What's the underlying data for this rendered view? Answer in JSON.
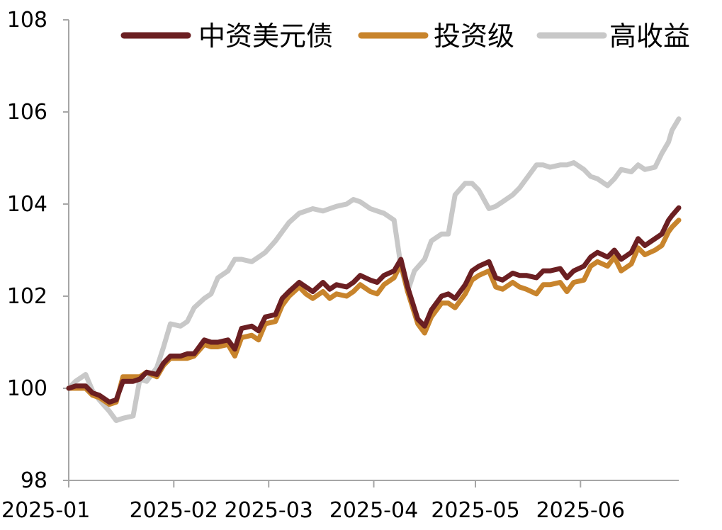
{
  "chart_data": {
    "type": "line",
    "title": "",
    "xlabel": "",
    "ylabel": "",
    "ylim": [
      98,
      108
    ],
    "yticks": [
      "98",
      "100",
      "102",
      "104",
      "106",
      "108"
    ],
    "xlim": [
      "2025-01-01",
      "2025-06-30"
    ],
    "xticks": [
      {
        "label": "2025-01",
        "date": "2025-01-01"
      },
      {
        "label": "2025-02",
        "date": "2025-02-01"
      },
      {
        "label": "2025-03",
        "date": "2025-03-01"
      },
      {
        "label": "2025-04",
        "date": "2025-04-01"
      },
      {
        "label": "2025-05",
        "date": "2025-05-01"
      },
      {
        "label": "2025-06",
        "date": "2025-06-01"
      }
    ],
    "grid": false,
    "legend_position": "top",
    "series": [
      {
        "name": "中资美元债",
        "color": "#6b1f22",
        "points": [
          [
            "2025-01-01",
            100.0
          ],
          [
            "2025-01-03",
            100.05
          ],
          [
            "2025-01-06",
            100.05
          ],
          [
            "2025-01-08",
            99.9
          ],
          [
            "2025-01-10",
            99.85
          ],
          [
            "2025-01-13",
            99.7
          ],
          [
            "2025-01-15",
            99.75
          ],
          [
            "2025-01-17",
            100.15
          ],
          [
            "2025-01-20",
            100.15
          ],
          [
            "2025-01-22",
            100.2
          ],
          [
            "2025-01-24",
            100.35
          ],
          [
            "2025-01-27",
            100.3
          ],
          [
            "2025-01-29",
            100.55
          ],
          [
            "2025-01-31",
            100.7
          ],
          [
            "2025-02-03",
            100.7
          ],
          [
            "2025-02-05",
            100.75
          ],
          [
            "2025-02-07",
            100.75
          ],
          [
            "2025-02-10",
            101.05
          ],
          [
            "2025-02-12",
            101.0
          ],
          [
            "2025-02-14",
            101.0
          ],
          [
            "2025-02-17",
            101.05
          ],
          [
            "2025-02-19",
            100.85
          ],
          [
            "2025-02-21",
            101.3
          ],
          [
            "2025-02-24",
            101.35
          ],
          [
            "2025-02-26",
            101.25
          ],
          [
            "2025-02-28",
            101.55
          ],
          [
            "2025-03-03",
            101.6
          ],
          [
            "2025-03-05",
            101.95
          ],
          [
            "2025-03-07",
            102.1
          ],
          [
            "2025-03-10",
            102.3
          ],
          [
            "2025-03-12",
            102.2
          ],
          [
            "2025-03-14",
            102.1
          ],
          [
            "2025-03-17",
            102.3
          ],
          [
            "2025-03-19",
            102.15
          ],
          [
            "2025-03-21",
            102.25
          ],
          [
            "2025-03-24",
            102.2
          ],
          [
            "2025-03-26",
            102.3
          ],
          [
            "2025-03-28",
            102.45
          ],
          [
            "2025-03-31",
            102.35
          ],
          [
            "2025-04-02",
            102.3
          ],
          [
            "2025-04-04",
            102.45
          ],
          [
            "2025-04-07",
            102.55
          ],
          [
            "2025-04-09",
            102.8
          ],
          [
            "2025-04-11",
            102.2
          ],
          [
            "2025-04-14",
            101.5
          ],
          [
            "2025-04-16",
            101.35
          ],
          [
            "2025-04-18",
            101.7
          ],
          [
            "2025-04-21",
            102.0
          ],
          [
            "2025-04-23",
            102.05
          ],
          [
            "2025-04-25",
            101.95
          ],
          [
            "2025-04-28",
            102.25
          ],
          [
            "2025-04-30",
            102.55
          ],
          [
            "2025-05-02",
            102.65
          ],
          [
            "2025-05-05",
            102.75
          ],
          [
            "2025-05-07",
            102.4
          ],
          [
            "2025-05-09",
            102.35
          ],
          [
            "2025-05-12",
            102.5
          ],
          [
            "2025-05-14",
            102.45
          ],
          [
            "2025-05-16",
            102.45
          ],
          [
            "2025-05-19",
            102.4
          ],
          [
            "2025-05-21",
            102.55
          ],
          [
            "2025-05-23",
            102.55
          ],
          [
            "2025-05-26",
            102.6
          ],
          [
            "2025-05-28",
            102.4
          ],
          [
            "2025-05-30",
            102.55
          ],
          [
            "2025-06-02",
            102.65
          ],
          [
            "2025-06-04",
            102.85
          ],
          [
            "2025-06-06",
            102.95
          ],
          [
            "2025-06-09",
            102.85
          ],
          [
            "2025-06-11",
            103.0
          ],
          [
            "2025-06-13",
            102.8
          ],
          [
            "2025-06-16",
            102.95
          ],
          [
            "2025-06-18",
            103.25
          ],
          [
            "2025-06-20",
            103.1
          ],
          [
            "2025-06-23",
            103.25
          ],
          [
            "2025-06-25",
            103.35
          ],
          [
            "2025-06-27",
            103.65
          ],
          [
            "2025-06-28",
            103.75
          ],
          [
            "2025-06-30",
            103.92
          ]
        ]
      },
      {
        "name": "投资级",
        "color": "#c8842c",
        "points": [
          [
            "2025-01-01",
            100.0
          ],
          [
            "2025-01-03",
            100.0
          ],
          [
            "2025-01-06",
            100.0
          ],
          [
            "2025-01-08",
            99.85
          ],
          [
            "2025-01-10",
            99.8
          ],
          [
            "2025-01-13",
            99.65
          ],
          [
            "2025-01-15",
            99.7
          ],
          [
            "2025-01-17",
            100.25
          ],
          [
            "2025-01-20",
            100.25
          ],
          [
            "2025-01-22",
            100.25
          ],
          [
            "2025-01-24",
            100.35
          ],
          [
            "2025-01-27",
            100.25
          ],
          [
            "2025-01-29",
            100.5
          ],
          [
            "2025-01-31",
            100.65
          ],
          [
            "2025-02-03",
            100.65
          ],
          [
            "2025-02-05",
            100.65
          ],
          [
            "2025-02-07",
            100.7
          ],
          [
            "2025-02-10",
            100.95
          ],
          [
            "2025-02-12",
            100.9
          ],
          [
            "2025-02-14",
            100.9
          ],
          [
            "2025-02-17",
            100.95
          ],
          [
            "2025-02-19",
            100.7
          ],
          [
            "2025-02-21",
            101.1
          ],
          [
            "2025-02-24",
            101.15
          ],
          [
            "2025-02-26",
            101.05
          ],
          [
            "2025-02-28",
            101.4
          ],
          [
            "2025-03-03",
            101.45
          ],
          [
            "2025-03-05",
            101.8
          ],
          [
            "2025-03-07",
            102.0
          ],
          [
            "2025-03-10",
            102.2
          ],
          [
            "2025-03-12",
            102.05
          ],
          [
            "2025-03-14",
            101.95
          ],
          [
            "2025-03-17",
            102.1
          ],
          [
            "2025-03-19",
            101.95
          ],
          [
            "2025-03-21",
            102.05
          ],
          [
            "2025-03-24",
            102.0
          ],
          [
            "2025-03-26",
            102.1
          ],
          [
            "2025-03-28",
            102.25
          ],
          [
            "2025-03-31",
            102.1
          ],
          [
            "2025-04-02",
            102.05
          ],
          [
            "2025-04-04",
            102.25
          ],
          [
            "2025-04-07",
            102.4
          ],
          [
            "2025-04-09",
            102.7
          ],
          [
            "2025-04-11",
            102.1
          ],
          [
            "2025-04-14",
            101.4
          ],
          [
            "2025-04-16",
            101.2
          ],
          [
            "2025-04-18",
            101.55
          ],
          [
            "2025-04-21",
            101.85
          ],
          [
            "2025-04-23",
            101.85
          ],
          [
            "2025-04-25",
            101.75
          ],
          [
            "2025-04-28",
            102.05
          ],
          [
            "2025-04-30",
            102.35
          ],
          [
            "2025-05-02",
            102.45
          ],
          [
            "2025-05-05",
            102.55
          ],
          [
            "2025-05-07",
            102.2
          ],
          [
            "2025-05-09",
            102.15
          ],
          [
            "2025-05-12",
            102.3
          ],
          [
            "2025-05-14",
            102.2
          ],
          [
            "2025-05-16",
            102.15
          ],
          [
            "2025-05-19",
            102.05
          ],
          [
            "2025-05-21",
            102.25
          ],
          [
            "2025-05-23",
            102.25
          ],
          [
            "2025-05-26",
            102.3
          ],
          [
            "2025-05-28",
            102.1
          ],
          [
            "2025-05-30",
            102.3
          ],
          [
            "2025-06-02",
            102.35
          ],
          [
            "2025-06-04",
            102.65
          ],
          [
            "2025-06-06",
            102.75
          ],
          [
            "2025-06-09",
            102.65
          ],
          [
            "2025-06-11",
            102.85
          ],
          [
            "2025-06-13",
            102.55
          ],
          [
            "2025-06-16",
            102.7
          ],
          [
            "2025-06-18",
            103.05
          ],
          [
            "2025-06-20",
            102.9
          ],
          [
            "2025-06-23",
            103.0
          ],
          [
            "2025-06-25",
            103.1
          ],
          [
            "2025-06-27",
            103.4
          ],
          [
            "2025-06-28",
            103.5
          ],
          [
            "2025-06-30",
            103.65
          ]
        ]
      },
      {
        "name": "高收益",
        "color": "#c8c8c8",
        "points": [
          [
            "2025-01-01",
            100.0
          ],
          [
            "2025-01-03",
            100.15
          ],
          [
            "2025-01-06",
            100.3
          ],
          [
            "2025-01-08",
            99.95
          ],
          [
            "2025-01-10",
            99.75
          ],
          [
            "2025-01-13",
            99.5
          ],
          [
            "2025-01-15",
            99.3
          ],
          [
            "2025-01-17",
            99.35
          ],
          [
            "2025-01-20",
            99.4
          ],
          [
            "2025-01-22",
            100.2
          ],
          [
            "2025-01-24",
            100.15
          ],
          [
            "2025-01-27",
            100.45
          ],
          [
            "2025-01-29",
            100.9
          ],
          [
            "2025-01-31",
            101.4
          ],
          [
            "2025-02-03",
            101.35
          ],
          [
            "2025-02-05",
            101.45
          ],
          [
            "2025-02-07",
            101.75
          ],
          [
            "2025-02-10",
            101.95
          ],
          [
            "2025-02-12",
            102.05
          ],
          [
            "2025-02-14",
            102.4
          ],
          [
            "2025-02-17",
            102.55
          ],
          [
            "2025-02-19",
            102.8
          ],
          [
            "2025-02-21",
            102.8
          ],
          [
            "2025-02-24",
            102.75
          ],
          [
            "2025-02-26",
            102.85
          ],
          [
            "2025-02-28",
            102.95
          ],
          [
            "2025-03-03",
            103.2
          ],
          [
            "2025-03-05",
            103.4
          ],
          [
            "2025-03-07",
            103.6
          ],
          [
            "2025-03-10",
            103.8
          ],
          [
            "2025-03-12",
            103.85
          ],
          [
            "2025-03-14",
            103.9
          ],
          [
            "2025-03-17",
            103.85
          ],
          [
            "2025-03-19",
            103.9
          ],
          [
            "2025-03-21",
            103.95
          ],
          [
            "2025-03-24",
            104.0
          ],
          [
            "2025-03-26",
            104.1
          ],
          [
            "2025-03-28",
            104.05
          ],
          [
            "2025-03-31",
            103.9
          ],
          [
            "2025-04-02",
            103.85
          ],
          [
            "2025-04-04",
            103.8
          ],
          [
            "2025-04-07",
            103.65
          ],
          [
            "2025-04-09",
            102.65
          ],
          [
            "2025-04-11",
            102.1
          ],
          [
            "2025-04-13",
            102.55
          ],
          [
            "2025-04-16",
            102.8
          ],
          [
            "2025-04-18",
            103.2
          ],
          [
            "2025-04-21",
            103.35
          ],
          [
            "2025-04-23",
            103.35
          ],
          [
            "2025-04-25",
            104.2
          ],
          [
            "2025-04-28",
            104.45
          ],
          [
            "2025-04-30",
            104.45
          ],
          [
            "2025-05-02",
            104.3
          ],
          [
            "2025-05-05",
            103.9
          ],
          [
            "2025-05-07",
            103.95
          ],
          [
            "2025-05-09",
            104.05
          ],
          [
            "2025-05-12",
            104.2
          ],
          [
            "2025-05-14",
            104.35
          ],
          [
            "2025-05-16",
            104.55
          ],
          [
            "2025-05-19",
            104.85
          ],
          [
            "2025-05-21",
            104.85
          ],
          [
            "2025-05-23",
            104.8
          ],
          [
            "2025-05-26",
            104.85
          ],
          [
            "2025-05-28",
            104.85
          ],
          [
            "2025-05-30",
            104.9
          ],
          [
            "2025-06-02",
            104.75
          ],
          [
            "2025-06-04",
            104.6
          ],
          [
            "2025-06-06",
            104.55
          ],
          [
            "2025-06-09",
            104.4
          ],
          [
            "2025-06-11",
            104.55
          ],
          [
            "2025-06-13",
            104.75
          ],
          [
            "2025-06-16",
            104.7
          ],
          [
            "2025-06-18",
            104.85
          ],
          [
            "2025-06-20",
            104.75
          ],
          [
            "2025-06-23",
            104.8
          ],
          [
            "2025-06-25",
            105.1
          ],
          [
            "2025-06-27",
            105.35
          ],
          [
            "2025-06-28",
            105.6
          ],
          [
            "2025-06-30",
            105.85
          ]
        ]
      }
    ]
  }
}
